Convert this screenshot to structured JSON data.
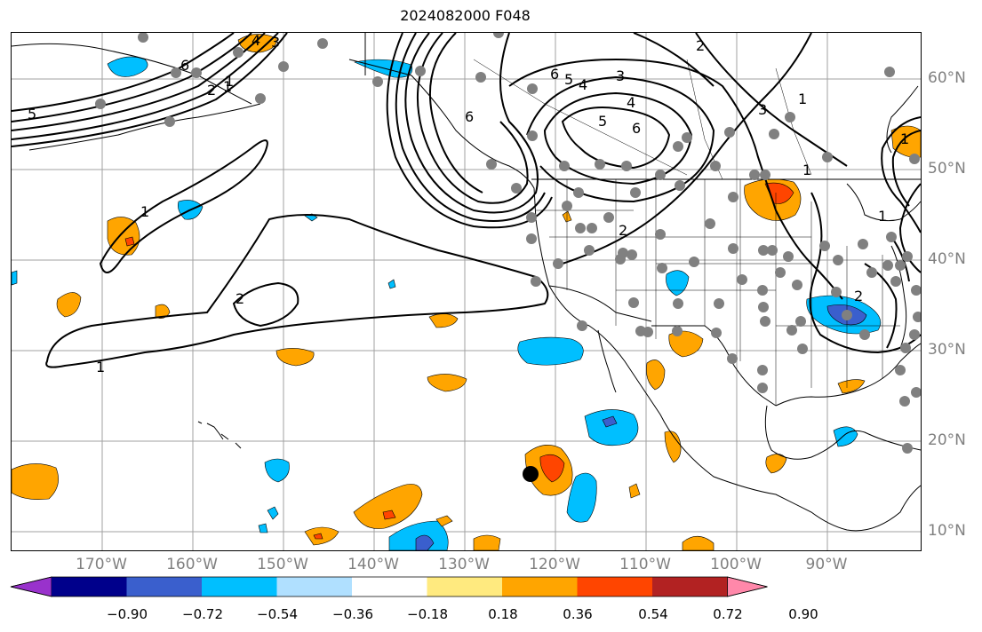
{
  "title": "2024082000 F048",
  "lon_labels": [
    "170°W",
    "160°W",
    "150°W",
    "140°W",
    "130°W",
    "120°W",
    "110°W",
    "100°W",
    "90°W"
  ],
  "lat_labels": [
    "60°N",
    "50°N",
    "40°N",
    "30°N",
    "20°N",
    "10°N"
  ],
  "colorbar": {
    "ticks": [
      "−0.90",
      "−0.72",
      "−0.54",
      "−0.36",
      "−0.18",
      "0.18",
      "0.36",
      "0.54",
      "0.72",
      "0.90"
    ],
    "colors": [
      "#9932cc",
      "#00008b",
      "#3a5fcd",
      "#00bfff",
      "#b0e0ff",
      "#ffffff",
      "#ffea7f",
      "#ffa500",
      "#ff4500",
      "#b22222",
      "#ff88aa"
    ]
  },
  "contour_labels": [
    "5",
    "6",
    "4",
    "3",
    "6",
    "2",
    "1",
    "6",
    "5",
    "4",
    "3",
    "2",
    "1",
    "5",
    "6",
    "4",
    "1",
    "3",
    "2",
    "1",
    "2",
    "1",
    "1",
    "2",
    "1",
    "1"
  ],
  "storm_marker": "black-dot",
  "station_marker_color": "#808080"
}
